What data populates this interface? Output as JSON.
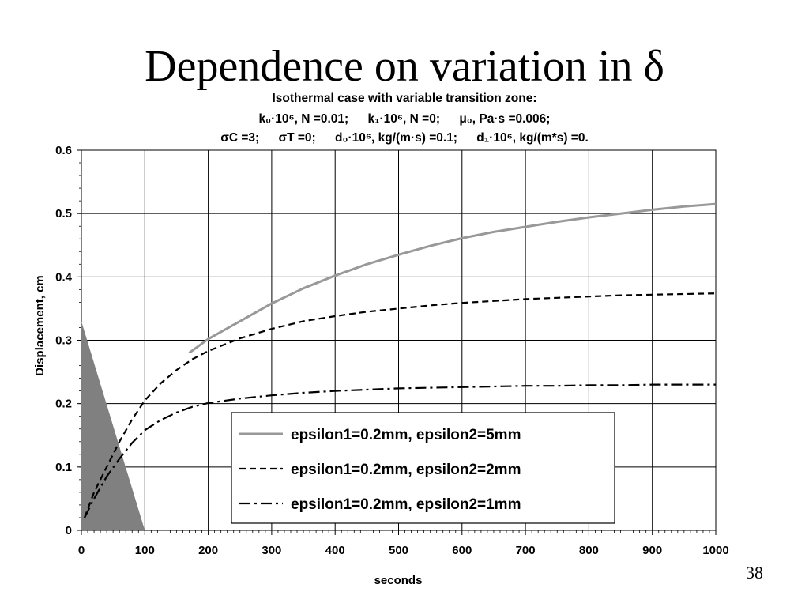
{
  "slide": {
    "title": "Dependence on variation in δ",
    "page_number": "38"
  },
  "chart_data": {
    "type": "line",
    "title": "Isothermal case with variable transition zone:",
    "subtitle_line1": [
      "k₀·10⁶, N =0.01;",
      "k₁·10⁶, N =0;",
      "μ₀, Pa·s =0.006;"
    ],
    "subtitle_line2": [
      "σC =3;",
      "σT =0;",
      "d₀·10⁶, kg/(m·s) =0.1;",
      "d₁·10⁶, kg/(m*s) =0."
    ],
    "xlabel": "seconds",
    "ylabel": "Displacement, cm",
    "xlim": [
      0,
      1000
    ],
    "ylim": [
      0,
      0.6
    ],
    "x_ticks": [
      0,
      100,
      200,
      300,
      400,
      500,
      600,
      700,
      800,
      900,
      1000
    ],
    "y_ticks": [
      "0",
      "0.1",
      "0.2",
      "0.3",
      "0.4",
      "0.5",
      "0.6"
    ],
    "grid": true,
    "legend_position": "lower-right",
    "series": [
      {
        "name": "epsilon1=0.2mm, epsilon2=5mm",
        "color": "#999999",
        "dash": "solid",
        "x": [
          170,
          200,
          250,
          300,
          350,
          400,
          450,
          500,
          550,
          600,
          650,
          700,
          750,
          800,
          850,
          900,
          950,
          1000
        ],
        "y": [
          0.28,
          0.302,
          0.33,
          0.358,
          0.382,
          0.402,
          0.42,
          0.435,
          0.449,
          0.461,
          0.471,
          0.479,
          0.487,
          0.494,
          0.5,
          0.506,
          0.511,
          0.515
        ]
      },
      {
        "name": "epsilon1=0.2mm, epsilon2=2mm",
        "color": "#000000",
        "dash": "dashed",
        "x": [
          5,
          20,
          40,
          60,
          80,
          100,
          125,
          150,
          175,
          200,
          250,
          300,
          350,
          400,
          450,
          500,
          550,
          600,
          650,
          700,
          750,
          800,
          850,
          900,
          950,
          1000
        ],
        "y": [
          0.02,
          0.06,
          0.1,
          0.14,
          0.175,
          0.205,
          0.232,
          0.253,
          0.27,
          0.283,
          0.303,
          0.318,
          0.33,
          0.338,
          0.345,
          0.35,
          0.355,
          0.359,
          0.362,
          0.365,
          0.367,
          0.369,
          0.371,
          0.372,
          0.373,
          0.374
        ]
      },
      {
        "name": "epsilon1=0.2mm, epsilon2=1mm",
        "color": "#000000",
        "dash": "dashdot",
        "x": [
          5,
          20,
          40,
          60,
          80,
          100,
          125,
          150,
          175,
          200,
          250,
          300,
          350,
          400,
          450,
          500,
          550,
          600,
          650,
          700,
          750,
          800,
          850,
          900,
          950,
          1000
        ],
        "y": [
          0.02,
          0.05,
          0.085,
          0.113,
          0.138,
          0.158,
          0.174,
          0.186,
          0.195,
          0.201,
          0.208,
          0.213,
          0.217,
          0.22,
          0.222,
          0.224,
          0.225,
          0.226,
          0.227,
          0.228,
          0.228,
          0.229,
          0.229,
          0.23,
          0.23,
          0.23
        ]
      }
    ],
    "triangle": {
      "color": "#808080",
      "x": [
        0,
        0,
        100
      ],
      "y": [
        0.33,
        0,
        0
      ]
    }
  }
}
